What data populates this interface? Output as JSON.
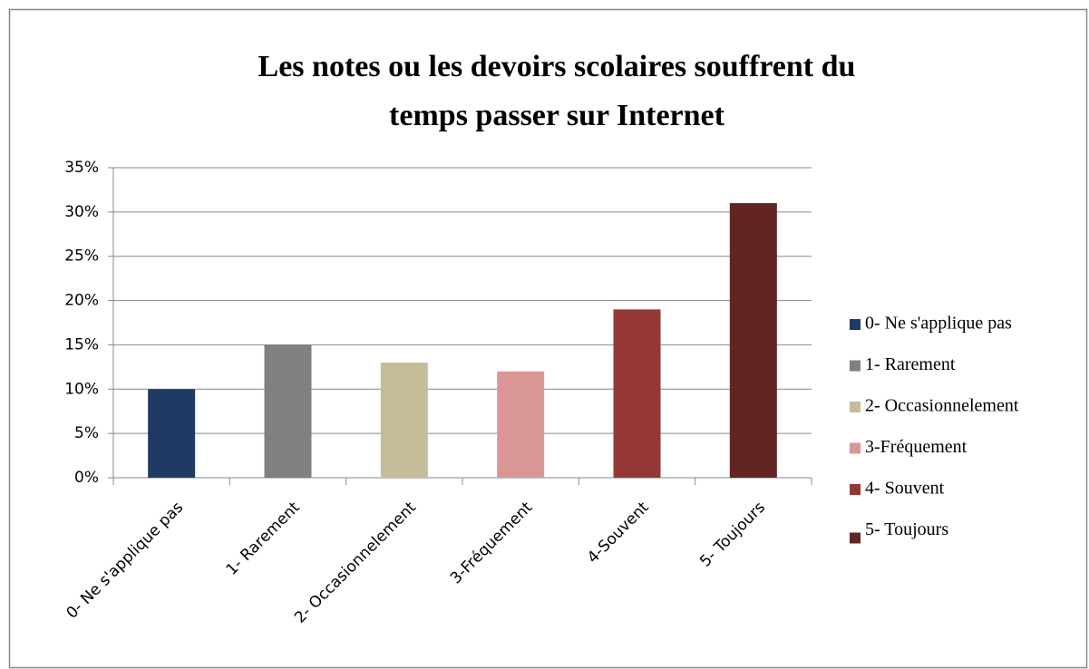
{
  "chart_data": {
    "type": "bar",
    "title": [
      "Les  notes ou les devoirs scolaires souffrent du",
      "temps passer sur Internet"
    ],
    "categories": [
      "0- Ne s'applique pas",
      "1- Rarement",
      "2- Occasionnelement",
      "3-Fréquement",
      "4-Souvent",
      "5- Toujours"
    ],
    "values": [
      10,
      15,
      13,
      12,
      19,
      31
    ],
    "colors": [
      "#1f3b63",
      "#808080",
      "#c4bd97",
      "#d99694",
      "#953735",
      "#632523"
    ],
    "legend": [
      "0- Ne s'applique pas",
      "1- Rarement",
      "2- Occasionnelement",
      "3-Fréquement",
      "4- Souvent",
      "5- Toujours"
    ],
    "legend_position": "right",
    "ylim": [
      0,
      35
    ],
    "yticks": [
      {
        "value": 0,
        "label": "0%"
      },
      {
        "value": 5,
        "label": "5%"
      },
      {
        "value": 10,
        "label": "10%"
      },
      {
        "value": 15,
        "label": "15%"
      },
      {
        "value": 20,
        "label": "20%"
      },
      {
        "value": 25,
        "label": "25%"
      },
      {
        "value": 30,
        "label": "30%"
      },
      {
        "value": 35,
        "label": "35%"
      }
    ],
    "grid": true
  }
}
